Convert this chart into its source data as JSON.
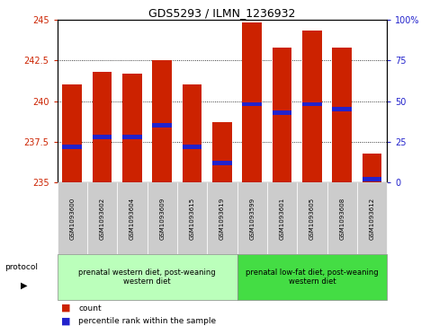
{
  "title": "GDS5293 / ILMN_1236932",
  "samples": [
    "GSM1093600",
    "GSM1093602",
    "GSM1093604",
    "GSM1093609",
    "GSM1093615",
    "GSM1093619",
    "GSM1093599",
    "GSM1093601",
    "GSM1093605",
    "GSM1093608",
    "GSM1093612"
  ],
  "bar_values": [
    241.0,
    241.8,
    241.7,
    242.5,
    241.0,
    238.7,
    244.8,
    243.3,
    244.3,
    243.3,
    236.8
  ],
  "bar_bottom": 235.0,
  "percentile_values": [
    22,
    28,
    28,
    35,
    22,
    12,
    48,
    43,
    48,
    45,
    2
  ],
  "bar_color": "#cc2200",
  "percentile_color": "#2222cc",
  "ylim_left": [
    235,
    245
  ],
  "ylim_right": [
    0,
    100
  ],
  "yticks_left": [
    235,
    237.5,
    240,
    242.5,
    245
  ],
  "yticks_right": [
    0,
    25,
    50,
    75,
    100
  ],
  "ytick_labels_left": [
    "235",
    "237.5",
    "240",
    "242.5",
    "245"
  ],
  "ytick_labels_right": [
    "0",
    "25",
    "50",
    "75",
    "100%"
  ],
  "left_tick_color": "#cc2200",
  "right_tick_color": "#2222cc",
  "group1_label": "prenatal western diet, post-weaning\nwestern diet",
  "group2_label": "prenatal low-fat diet, post-weaning\nwestern diet",
  "group1_n": 6,
  "group2_n": 5,
  "group1_color": "#bbffbb",
  "group2_color": "#44dd44",
  "legend_count_label": "count",
  "legend_percentile_label": "percentile rank within the sample",
  "protocol_label": "protocol",
  "bar_width": 0.65,
  "title_fontsize": 9,
  "tick_fontsize": 7,
  "sample_fontsize": 5,
  "proto_fontsize": 6,
  "legend_fontsize": 6.5
}
